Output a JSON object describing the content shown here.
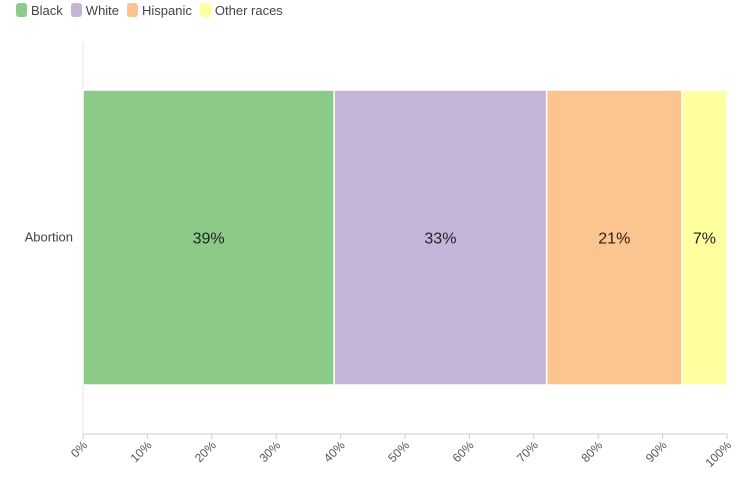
{
  "chart_data": {
    "type": "bar",
    "orientation": "horizontal",
    "stacked": true,
    "categories": [
      "Abortion"
    ],
    "series": [
      {
        "name": "Black",
        "values": [
          39
        ],
        "label": "39%",
        "color": "#8cca88"
      },
      {
        "name": "White",
        "values": [
          33
        ],
        "label": "33%",
        "color": "#c5b5d9"
      },
      {
        "name": "Hispanic",
        "values": [
          21
        ],
        "label": "21%",
        "color": "#fcc48e"
      },
      {
        "name": "Other races",
        "values": [
          7
        ],
        "label": "7%",
        "color": "#ffff9f"
      }
    ],
    "xlim": [
      0,
      100
    ],
    "xticks": [
      "0%",
      "10%",
      "20%",
      "30%",
      "40%",
      "50%",
      "60%",
      "70%",
      "80%",
      "90%",
      "100%"
    ],
    "legend_position": "top-left",
    "grid": false
  }
}
